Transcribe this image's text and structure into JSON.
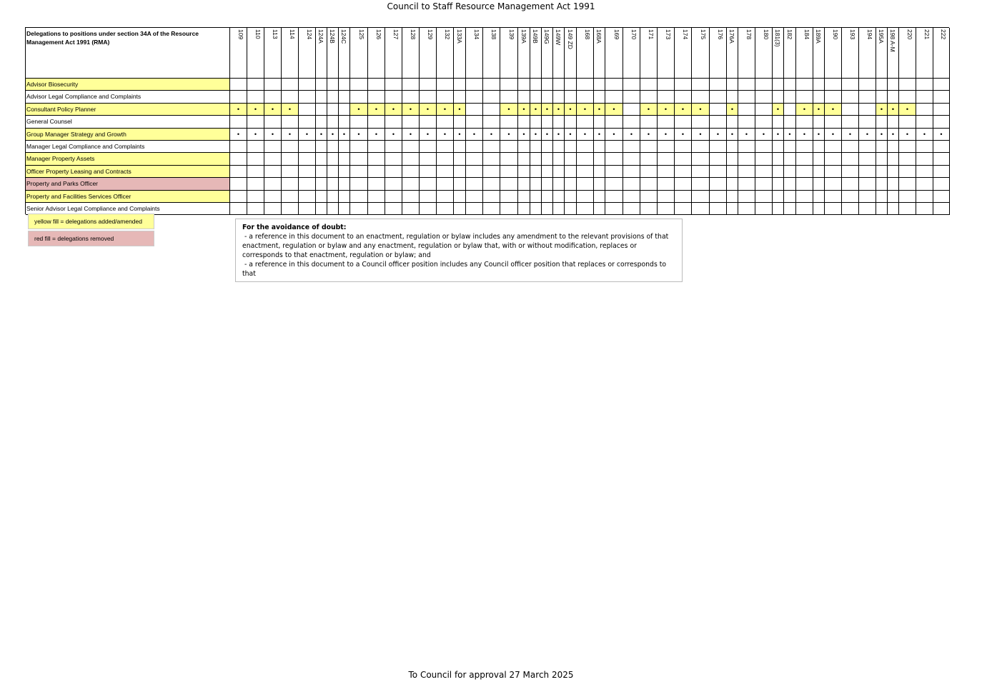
{
  "header": {
    "title": "Council to Staff Resource Management Act 1991"
  },
  "table": {
    "heading": "Delegations to positions under section 34A of the Resource Management Act 1991 (RMA)",
    "sections": [
      "109",
      "110",
      "113",
      "114",
      "124",
      "124A",
      "124B",
      "124C",
      "125",
      "126",
      "127",
      "128",
      "129",
      "132",
      "133A",
      "134",
      "138",
      "139",
      "139A",
      "149B",
      "149G",
      "149W",
      "149 ZD",
      "168",
      "168A",
      "169",
      "170",
      "171",
      "173",
      "174",
      "175",
      "176",
      "176A",
      "178",
      "180",
      "181(3)",
      "182",
      "184",
      "189A",
      "190",
      "193",
      "194",
      "195A",
      "198 A-M",
      "220",
      "221",
      "222"
    ],
    "mark": "•",
    "rows": [
      {
        "position": "Advisor Biosecurity",
        "fill": "#ffff99",
        "delegated": [
          false,
          false,
          false,
          false,
          false,
          false,
          false,
          false,
          false,
          false,
          false,
          false,
          false,
          false,
          false,
          false,
          false,
          false,
          false,
          false,
          false,
          false,
          false,
          false,
          false,
          false,
          false,
          false,
          false,
          false,
          false,
          false,
          false,
          false,
          false,
          false,
          false,
          false,
          false,
          false,
          false,
          false,
          false,
          false,
          false,
          false,
          false
        ]
      },
      {
        "position": "Advisor Legal Compliance and Complaints",
        "fill": "#ffffff",
        "delegated": [
          false,
          false,
          false,
          false,
          false,
          false,
          false,
          false,
          false,
          false,
          false,
          false,
          false,
          false,
          false,
          false,
          false,
          false,
          false,
          false,
          false,
          false,
          false,
          false,
          false,
          false,
          false,
          false,
          false,
          false,
          false,
          false,
          false,
          false,
          false,
          false,
          false,
          false,
          false,
          false,
          false,
          false,
          false,
          false,
          false,
          false,
          false
        ]
      },
      {
        "position": "Consultant Policy Planner",
        "fill": "#ffff99",
        "cell_fill": "#ffff99",
        "delegated": [
          true,
          true,
          true,
          true,
          false,
          false,
          false,
          false,
          true,
          true,
          true,
          true,
          true,
          true,
          true,
          false,
          false,
          true,
          true,
          true,
          true,
          true,
          true,
          true,
          true,
          true,
          false,
          true,
          true,
          true,
          true,
          false,
          true,
          false,
          false,
          true,
          false,
          true,
          true,
          true,
          false,
          false,
          true,
          true,
          true,
          false,
          false
        ]
      },
      {
        "position": "General Counsel",
        "fill": "#ffffff",
        "delegated": [
          false,
          false,
          false,
          false,
          false,
          false,
          false,
          false,
          false,
          false,
          false,
          false,
          false,
          false,
          false,
          false,
          false,
          false,
          false,
          false,
          false,
          false,
          false,
          false,
          false,
          false,
          false,
          false,
          false,
          false,
          false,
          false,
          false,
          false,
          false,
          false,
          false,
          false,
          false,
          false,
          false,
          false,
          false,
          false,
          false,
          false,
          false
        ]
      },
      {
        "position": "Group Manager Strategy and Growth",
        "fill": "#ffff99",
        "delegated": [
          true,
          true,
          true,
          true,
          true,
          true,
          true,
          true,
          true,
          true,
          true,
          true,
          true,
          true,
          true,
          true,
          true,
          true,
          true,
          true,
          true,
          true,
          true,
          true,
          true,
          true,
          true,
          true,
          true,
          true,
          true,
          true,
          true,
          true,
          true,
          true,
          true,
          true,
          true,
          true,
          true,
          true,
          true,
          true,
          true,
          true,
          true
        ]
      },
      {
        "position": "Manager Legal Compliance and Complaints",
        "fill": "#ffffff",
        "delegated": [
          false,
          false,
          false,
          false,
          false,
          false,
          false,
          false,
          false,
          false,
          false,
          false,
          false,
          false,
          false,
          false,
          false,
          false,
          false,
          false,
          false,
          false,
          false,
          false,
          false,
          false,
          false,
          false,
          false,
          false,
          false,
          false,
          false,
          false,
          false,
          false,
          false,
          false,
          false,
          false,
          false,
          false,
          false,
          false,
          false,
          false,
          false
        ]
      },
      {
        "position": "Manager Property Assets",
        "fill": "#ffff99",
        "delegated": [
          false,
          false,
          false,
          false,
          false,
          false,
          false,
          false,
          false,
          false,
          false,
          false,
          false,
          false,
          false,
          false,
          false,
          false,
          false,
          false,
          false,
          false,
          false,
          false,
          false,
          false,
          false,
          false,
          false,
          false,
          false,
          false,
          false,
          false,
          false,
          false,
          false,
          false,
          false,
          false,
          false,
          false,
          false,
          false,
          false,
          false,
          false
        ]
      },
      {
        "position": "Officer Property Leasing and Contracts",
        "fill": "#ffff99",
        "delegated": [
          false,
          false,
          false,
          false,
          false,
          false,
          false,
          false,
          false,
          false,
          false,
          false,
          false,
          false,
          false,
          false,
          false,
          false,
          false,
          false,
          false,
          false,
          false,
          false,
          false,
          false,
          false,
          false,
          false,
          false,
          false,
          false,
          false,
          false,
          false,
          false,
          false,
          false,
          false,
          false,
          false,
          false,
          false,
          false,
          false,
          false,
          false
        ]
      },
      {
        "position": "Property and Parks Officer",
        "fill": "#e6b8b7",
        "delegated": [
          false,
          false,
          false,
          false,
          false,
          false,
          false,
          false,
          false,
          false,
          false,
          false,
          false,
          false,
          false,
          false,
          false,
          false,
          false,
          false,
          false,
          false,
          false,
          false,
          false,
          false,
          false,
          false,
          false,
          false,
          false,
          false,
          false,
          false,
          false,
          false,
          false,
          false,
          false,
          false,
          false,
          false,
          false,
          false,
          false,
          false,
          false
        ]
      },
      {
        "position": "Property and  Facilities Services Officer",
        "fill": "#ffff99",
        "delegated": [
          false,
          false,
          false,
          false,
          false,
          false,
          false,
          false,
          false,
          false,
          false,
          false,
          false,
          false,
          false,
          false,
          false,
          false,
          false,
          false,
          false,
          false,
          false,
          false,
          false,
          false,
          false,
          false,
          false,
          false,
          false,
          false,
          false,
          false,
          false,
          false,
          false,
          false,
          false,
          false,
          false,
          false,
          false,
          false,
          false,
          false,
          false
        ]
      },
      {
        "position": "Senior Advisor Legal Compliance and Complaints",
        "fill": "#ffffff",
        "delegated": [
          false,
          false,
          false,
          false,
          false,
          false,
          false,
          false,
          false,
          false,
          false,
          false,
          false,
          false,
          false,
          false,
          false,
          false,
          false,
          false,
          false,
          false,
          false,
          false,
          false,
          false,
          false,
          false,
          false,
          false,
          false,
          false,
          false,
          false,
          false,
          false,
          false,
          false,
          false,
          false,
          false,
          false,
          false,
          false,
          false,
          false,
          false
        ]
      }
    ]
  },
  "legend": [
    {
      "label": "yellow fill = delegations added/amended",
      "fill": "#ffff99"
    },
    {
      "label": "red fill = delegations removed",
      "fill": "#e6b8b7"
    }
  ],
  "note": {
    "title": "For the avoidance of doubt:",
    "lines": [
      " - a reference in this document to an enactment, regulation or bylaw includes any amendment to the relevant provisions of that enactment, regulation or bylaw and any enactment, regulation or bylaw that, with or without modification, replaces or corresponds to that enactment, regulation or bylaw; and",
      " - a reference in this document to a Council officer position includes any Council officer position that replaces or corresponds to that"
    ]
  },
  "footer": "To Council for approval 27 March 2025"
}
